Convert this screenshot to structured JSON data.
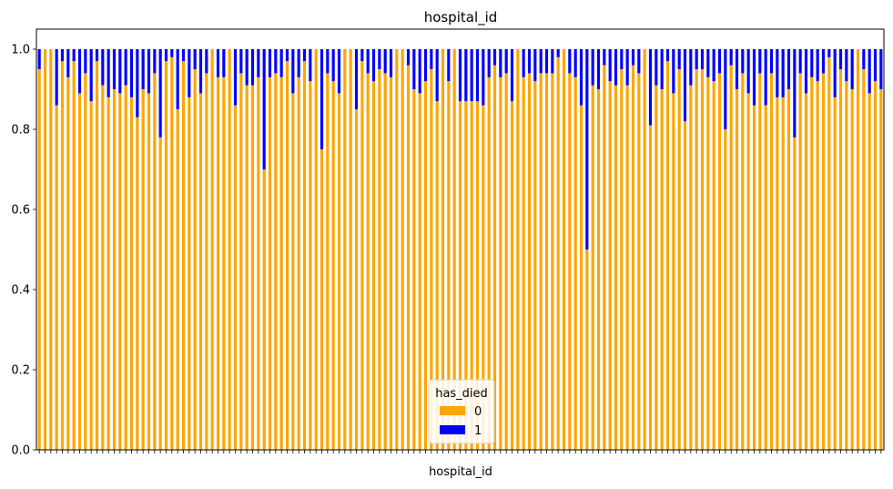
{
  "chart_data": {
    "type": "bar",
    "stacked": true,
    "title": "hospital_id",
    "xlabel": "hospital_id",
    "ylabel": "",
    "ylim": [
      0,
      1.05
    ],
    "yticks": [
      0.0,
      0.2,
      0.4,
      0.6,
      0.8,
      1.0
    ],
    "ytick_labels": [
      "0.0",
      "0.2",
      "0.4",
      "0.6",
      "0.8",
      "1.0"
    ],
    "x_tick_labels_visible": false,
    "legend": {
      "title": "has_died",
      "placement": "lower-center",
      "entries": [
        {
          "label": "0",
          "color": "#FFA500"
        },
        {
          "label": "1",
          "color": "#0000FF"
        }
      ]
    },
    "series": [
      {
        "name": "0",
        "color": "#FFA500",
        "values": [
          0.95,
          1.0,
          1.0,
          0.86,
          0.97,
          0.93,
          0.97,
          0.89,
          0.94,
          0.87,
          0.97,
          0.91,
          0.88,
          0.9,
          0.89,
          0.91,
          0.88,
          0.83,
          0.9,
          0.89,
          0.94,
          0.78,
          0.97,
          0.98,
          0.85,
          0.97,
          0.88,
          0.95,
          0.89,
          0.94,
          1.0,
          0.93,
          0.93,
          1.0,
          0.86,
          0.94,
          0.91,
          0.91,
          0.93,
          0.7,
          0.93,
          0.94,
          0.93,
          0.97,
          0.89,
          0.93,
          0.97,
          0.92,
          1.0,
          0.75,
          0.94,
          0.92,
          0.89,
          1.0,
          1.0,
          0.85,
          0.97,
          0.94,
          0.92,
          0.95,
          0.94,
          0.93,
          1.0,
          1.0,
          0.96,
          0.9,
          0.89,
          0.92,
          0.95,
          0.87,
          1.0,
          0.92,
          1.0,
          0.87,
          0.87,
          0.87,
          0.87,
          0.86,
          0.93,
          0.96,
          0.93,
          0.94,
          0.87,
          1.0,
          0.93,
          0.94,
          0.92,
          0.94,
          0.94,
          0.94,
          0.98,
          1.0,
          0.94,
          0.93,
          0.86,
          0.5,
          0.91,
          0.9,
          0.96,
          0.92,
          0.91,
          0.95,
          0.91,
          0.96,
          0.94,
          1.0,
          0.81,
          0.91,
          0.9,
          0.97,
          0.89,
          0.95,
          0.82,
          0.91,
          0.95,
          0.95,
          0.93,
          0.92,
          0.94,
          0.8,
          0.96,
          0.9,
          0.94,
          0.89,
          0.86,
          0.94,
          0.86,
          0.94,
          0.88,
          0.88,
          0.9,
          0.78,
          0.94,
          0.89,
          0.93,
          0.92,
          0.94,
          0.98,
          0.88,
          0.95,
          0.92,
          0.9,
          1.0,
          0.95,
          0.89,
          0.92,
          0.9
        ]
      },
      {
        "name": "1",
        "color": "#0000FF",
        "values": [
          0.05,
          0.0,
          0.0,
          0.14,
          0.03,
          0.07,
          0.03,
          0.11,
          0.06,
          0.13,
          0.03,
          0.09,
          0.12,
          0.1,
          0.11,
          0.09,
          0.12,
          0.17,
          0.1,
          0.11,
          0.06,
          0.22,
          0.03,
          0.02,
          0.15,
          0.03,
          0.12,
          0.05,
          0.11,
          0.06,
          0.0,
          0.07,
          0.07,
          0.0,
          0.14,
          0.06,
          0.09,
          0.09,
          0.07,
          0.3,
          0.07,
          0.06,
          0.07,
          0.03,
          0.11,
          0.07,
          0.03,
          0.08,
          0.0,
          0.25,
          0.06,
          0.08,
          0.11,
          0.0,
          0.0,
          0.15,
          0.03,
          0.06,
          0.08,
          0.05,
          0.06,
          0.07,
          0.0,
          0.0,
          0.04,
          0.1,
          0.11,
          0.08,
          0.05,
          0.13,
          0.0,
          0.08,
          0.0,
          0.13,
          0.13,
          0.13,
          0.13,
          0.14,
          0.07,
          0.04,
          0.07,
          0.06,
          0.13,
          0.0,
          0.07,
          0.06,
          0.08,
          0.06,
          0.06,
          0.06,
          0.02,
          0.0,
          0.06,
          0.07,
          0.14,
          0.5,
          0.09,
          0.1,
          0.04,
          0.08,
          0.09,
          0.05,
          0.09,
          0.04,
          0.06,
          0.0,
          0.19,
          0.09,
          0.1,
          0.03,
          0.11,
          0.05,
          0.18,
          0.09,
          0.05,
          0.05,
          0.07,
          0.08,
          0.06,
          0.2,
          0.04,
          0.1,
          0.06,
          0.11,
          0.14,
          0.06,
          0.14,
          0.06,
          0.12,
          0.12,
          0.1,
          0.22,
          0.06,
          0.11,
          0.07,
          0.08,
          0.06,
          0.02,
          0.12,
          0.05,
          0.08,
          0.1,
          0.0,
          0.05,
          0.11,
          0.08,
          0.1
        ]
      }
    ]
  }
}
